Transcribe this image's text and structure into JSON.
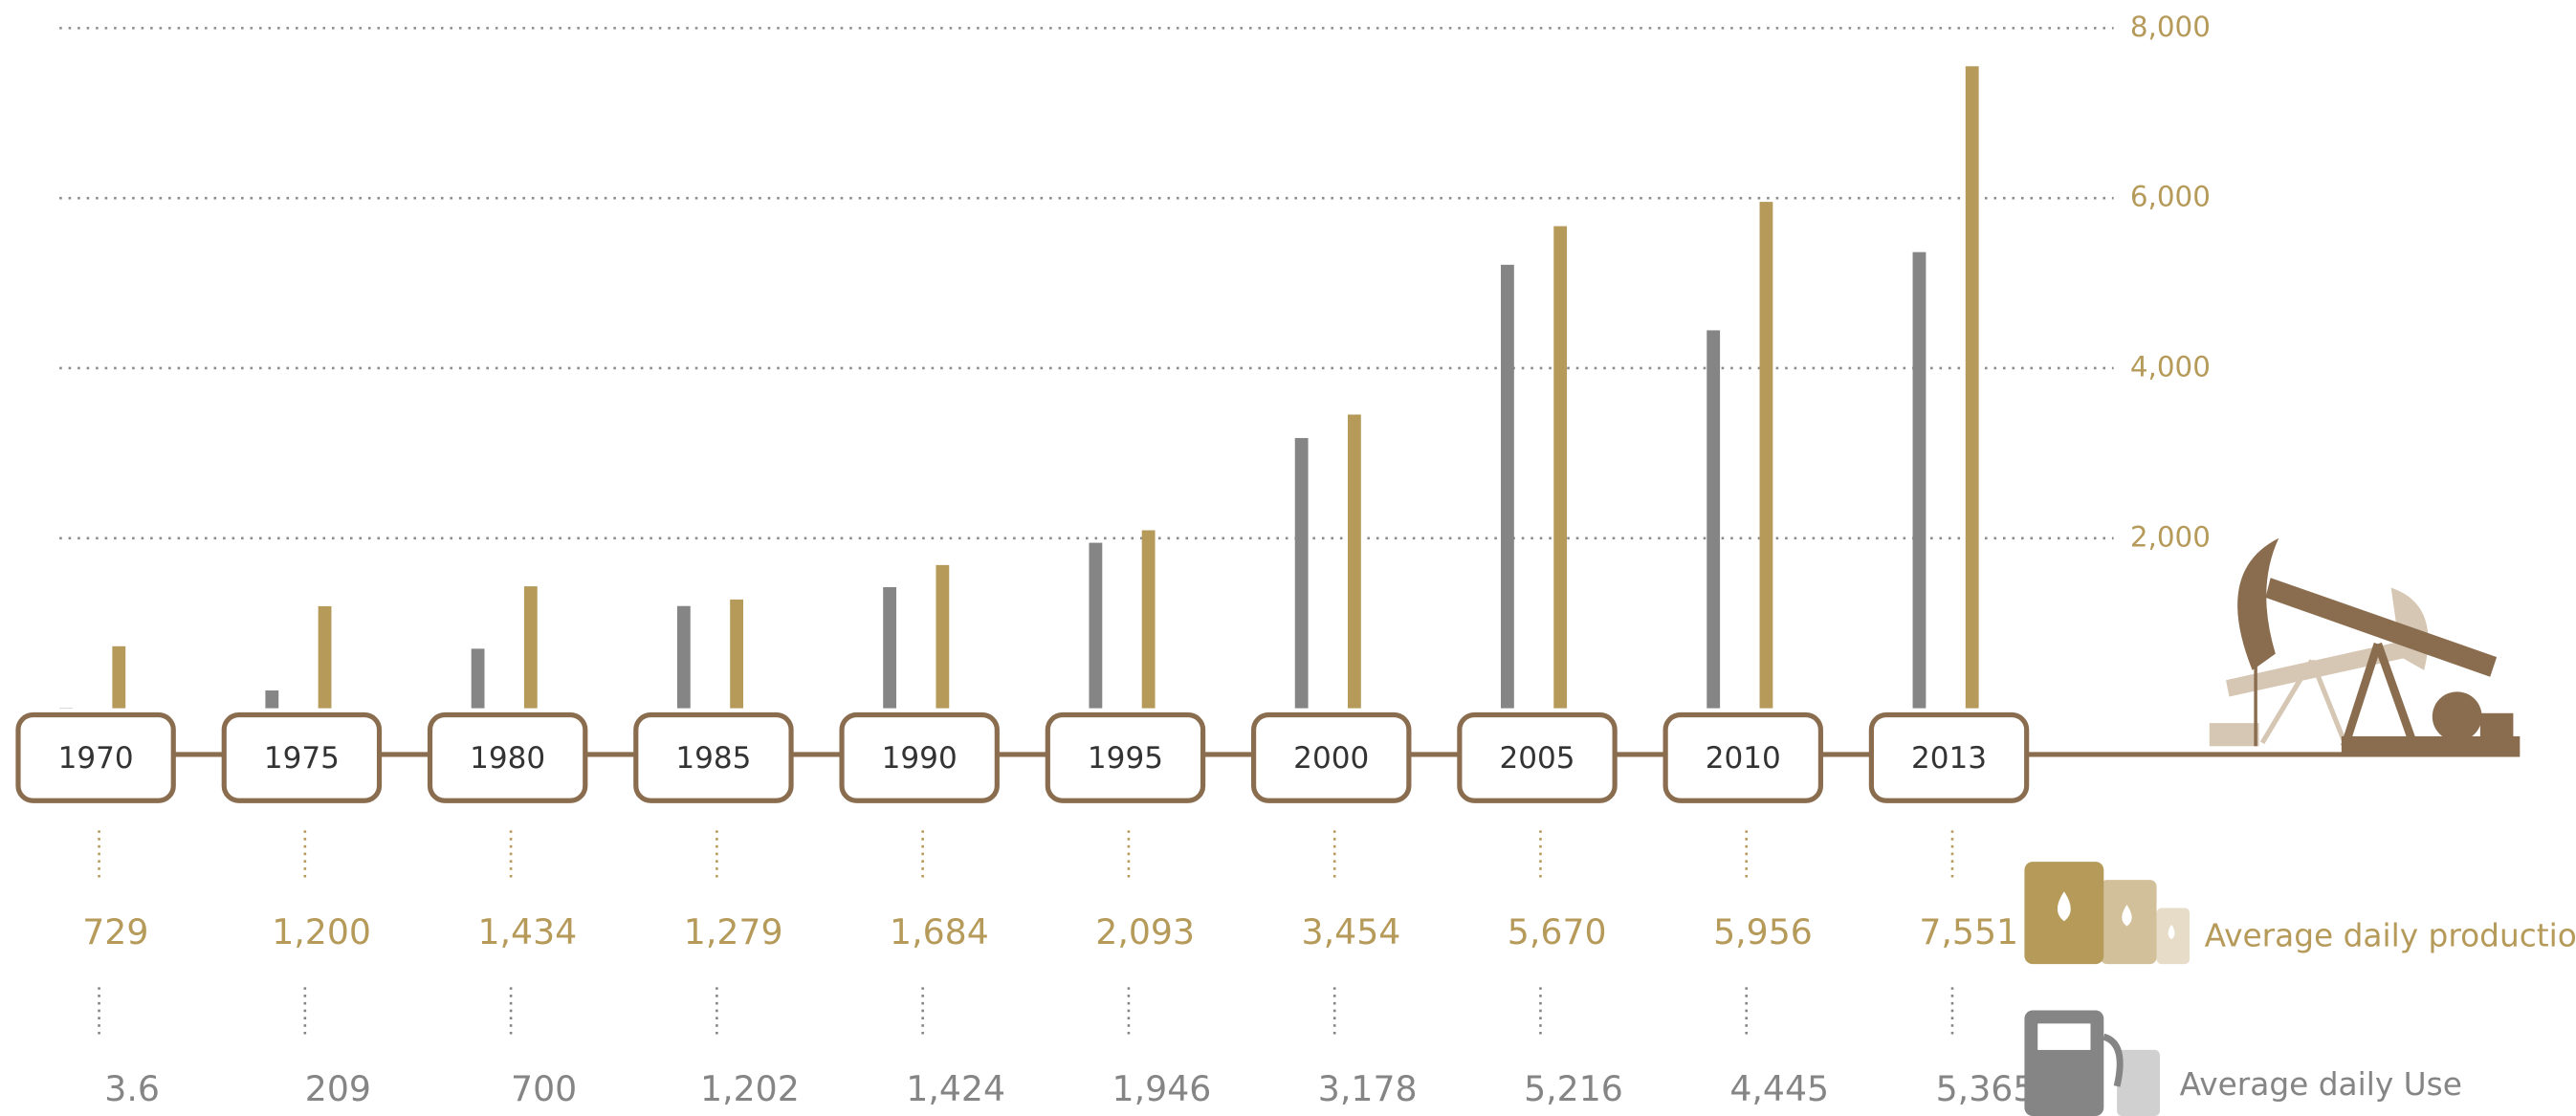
{
  "chart_data": {
    "type": "bar",
    "categories": [
      "1970",
      "1975",
      "1980",
      "1985",
      "1990",
      "1995",
      "2000",
      "2005",
      "2010",
      "2013"
    ],
    "series": [
      {
        "name": "Average daily production",
        "color": "#b59a5a",
        "values": [
          729,
          1200,
          1434,
          1279,
          1684,
          2093,
          3454,
          5670,
          5956,
          7551
        ],
        "value_labels": [
          "729",
          "1,200",
          "1,434",
          "1,279",
          "1,684",
          "2,093",
          "3,454",
          "5,670",
          "5,956",
          "7,551"
        ]
      },
      {
        "name": "Average daily Use",
        "color": "#858585",
        "values": [
          3.6,
          209,
          700,
          1202,
          1424,
          1946,
          3178,
          5216,
          4445,
          5365
        ],
        "value_labels": [
          "3.6",
          "209",
          "700",
          "1,202",
          "1,424",
          "1,946",
          "3,178",
          "5,216",
          "4,445",
          "5,365"
        ]
      }
    ],
    "ylim": [
      0,
      8000
    ],
    "yticks": [
      {
        "value": 2000,
        "label": "2,000"
      },
      {
        "value": 4000,
        "label": "4,000"
      },
      {
        "value": 6000,
        "label": "6,000"
      },
      {
        "value": 8000,
        "label": "8,000"
      }
    ],
    "grid": true
  }
}
